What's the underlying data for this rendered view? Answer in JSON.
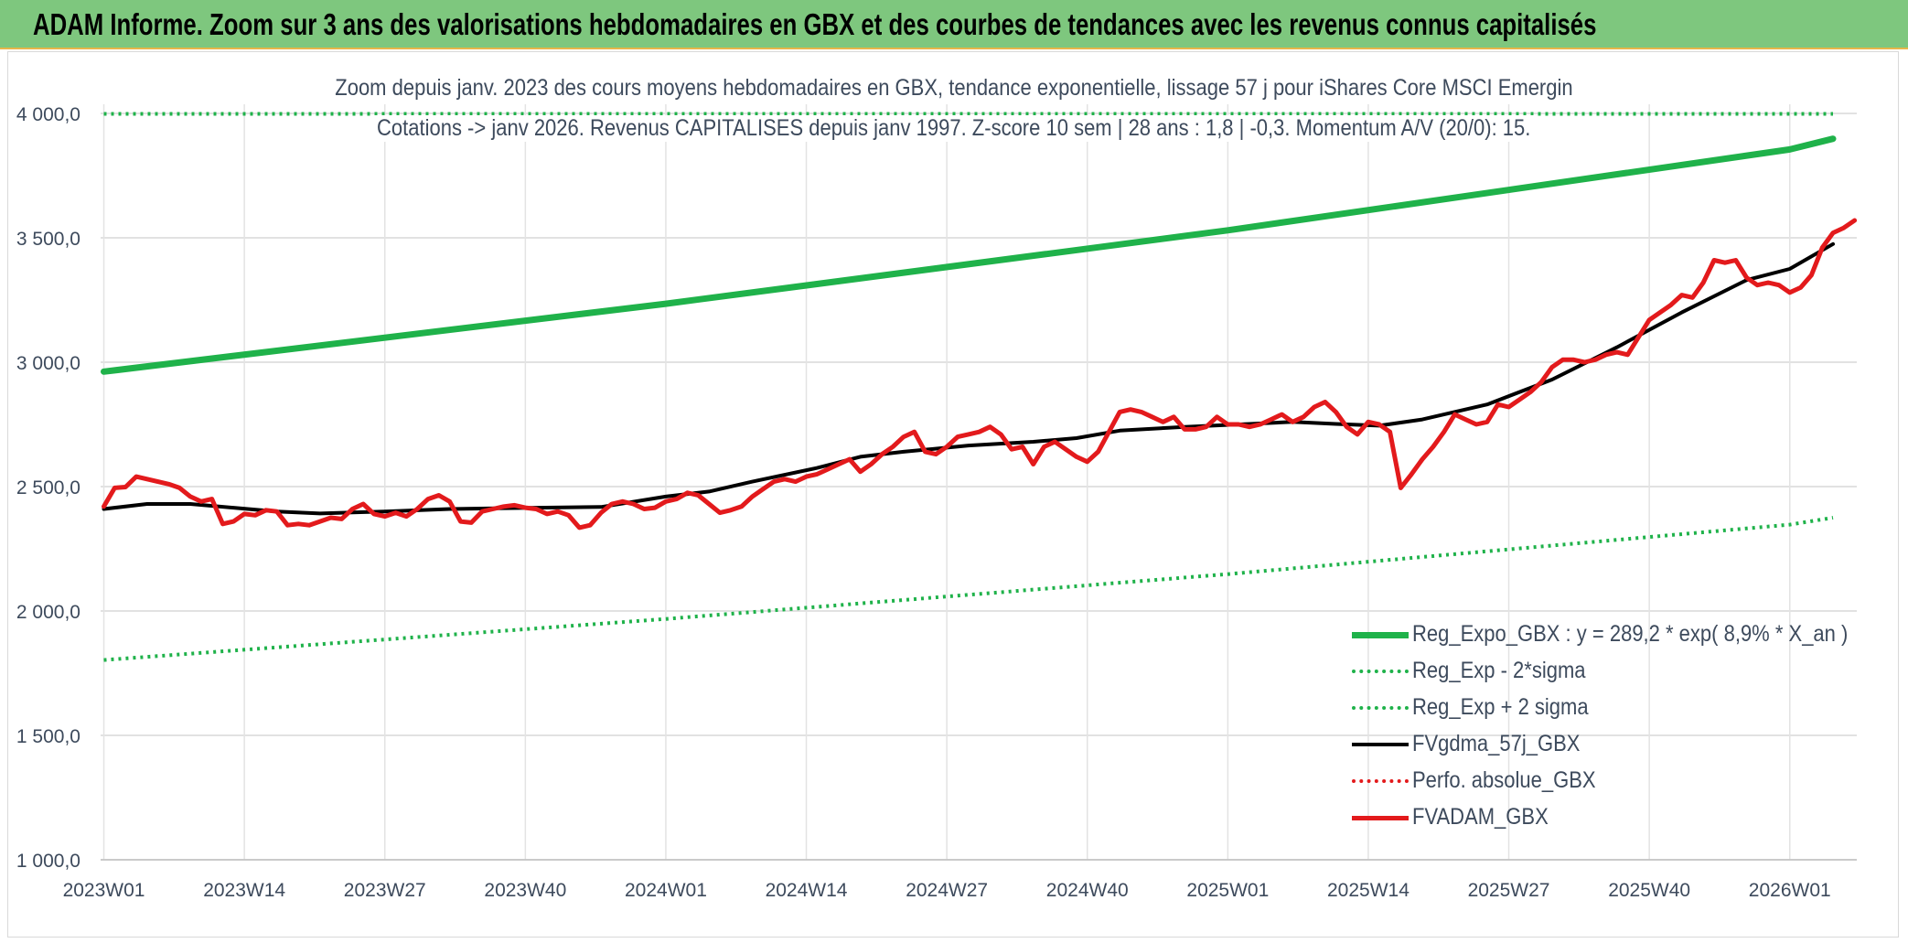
{
  "banner": {
    "title": "ADAM Informe. Zoom sur 3 ans des valorisations hebdomadaires en GBX et des courbes de tendances avec les revenus connus capitalisés"
  },
  "chart_data": {
    "type": "line",
    "title_line1": "Zoom depuis janv. 2023 des cours moyens hebdomadaires en GBX, tendance exponentielle, lissage 57 j pour iShares Core MSCI Emergin",
    "title_line2": "Cotations -> janv 2026. Revenus CAPITALISES depuis janv 1997. Z-score 10 sem | 28 ans : 1,8 | -0,3. Momentum A/V (20/0): 15.",
    "ylim": [
      1000,
      4000
    ],
    "yticks": [
      "1 000,0",
      "1 500,0",
      "2 000,0",
      "2 500,0",
      "3 000,0",
      "3 500,0",
      "4 000,0"
    ],
    "ytick_values": [
      1000,
      1500,
      2000,
      2500,
      3000,
      3500,
      4000
    ],
    "xticks": [
      "2023W01",
      "2023W14",
      "2023W27",
      "2023W40",
      "2024W01",
      "2024W14",
      "2024W27",
      "2024W40",
      "2025W01",
      "2025W14",
      "2025W27",
      "2025W40",
      "2026W01"
    ],
    "xtick_weeks": [
      0,
      13,
      26,
      39,
      52,
      65,
      78,
      91,
      104,
      117,
      130,
      143,
      156
    ],
    "x_range_weeks": [
      0,
      160
    ],
    "grid": true,
    "legend_position": "bottom-right",
    "series": [
      {
        "name": "Reg_Expo_GBX : y = 289,2 * exp( 8,9% *  X_an )",
        "color": "#1fb24a",
        "style": "solid",
        "width": 7,
        "anchors": [
          [
            0,
            2962
          ],
          [
            52,
            3235
          ],
          [
            104,
            3530
          ],
          [
            156,
            3855
          ],
          [
            160,
            3898
          ]
        ]
      },
      {
        "name": "Reg_Exp - 2*sigma",
        "color": "#1fb24a",
        "style": "dotted",
        "width": 4,
        "anchors": [
          [
            0,
            1803
          ],
          [
            52,
            1968
          ],
          [
            104,
            2148
          ],
          [
            156,
            2347
          ],
          [
            160,
            2375
          ]
        ]
      },
      {
        "name": "Reg_Exp + 2 sigma",
        "color": "#1fb24a",
        "style": "dotted",
        "width": 4,
        "anchors": [
          [
            0,
            3998
          ],
          [
            160,
            3998
          ]
        ]
      },
      {
        "name": "FVgdma_57j_GBX",
        "color": "#000000",
        "style": "solid",
        "width": 4,
        "anchors": [
          [
            0,
            2410
          ],
          [
            4,
            2430
          ],
          [
            8,
            2430
          ],
          [
            12,
            2415
          ],
          [
            16,
            2400
          ],
          [
            20,
            2392
          ],
          [
            26,
            2400
          ],
          [
            32,
            2410
          ],
          [
            40,
            2415
          ],
          [
            46,
            2418
          ],
          [
            52,
            2460
          ],
          [
            56,
            2480
          ],
          [
            60,
            2520
          ],
          [
            66,
            2575
          ],
          [
            70,
            2620
          ],
          [
            74,
            2640
          ],
          [
            80,
            2665
          ],
          [
            86,
            2680
          ],
          [
            90,
            2695
          ],
          [
            94,
            2725
          ],
          [
            100,
            2740
          ],
          [
            106,
            2752
          ],
          [
            110,
            2760
          ],
          [
            114,
            2752
          ],
          [
            118,
            2745
          ],
          [
            122,
            2770
          ],
          [
            128,
            2830
          ],
          [
            134,
            2930
          ],
          [
            140,
            3060
          ],
          [
            146,
            3200
          ],
          [
            152,
            3330
          ],
          [
            156,
            3375
          ],
          [
            160,
            3475
          ]
        ]
      },
      {
        "name": "Perfo. absolue_GBX",
        "color": "#e31a1c",
        "style": "dotted",
        "width": 3,
        "anchors": []
      },
      {
        "name": "FVADAM_GBX",
        "color": "#e31a1c",
        "style": "solid",
        "width": 5,
        "anchors": [
          [
            0,
            2420
          ],
          [
            1,
            2495
          ],
          [
            2,
            2498
          ],
          [
            3,
            2540
          ],
          [
            4,
            2530
          ],
          [
            5,
            2520
          ],
          [
            6,
            2510
          ],
          [
            7,
            2495
          ],
          [
            8,
            2460
          ],
          [
            9,
            2440
          ],
          [
            10,
            2450
          ],
          [
            11,
            2350
          ],
          [
            12,
            2360
          ],
          [
            13,
            2390
          ],
          [
            14,
            2385
          ],
          [
            15,
            2405
          ],
          [
            16,
            2400
          ],
          [
            17,
            2345
          ],
          [
            18,
            2350
          ],
          [
            19,
            2345
          ],
          [
            20,
            2360
          ],
          [
            21,
            2375
          ],
          [
            22,
            2370
          ],
          [
            23,
            2410
          ],
          [
            24,
            2430
          ],
          [
            25,
            2390
          ],
          [
            26,
            2380
          ],
          [
            27,
            2395
          ],
          [
            28,
            2380
          ],
          [
            29,
            2410
          ],
          [
            30,
            2450
          ],
          [
            31,
            2465
          ],
          [
            32,
            2440
          ],
          [
            33,
            2360
          ],
          [
            34,
            2355
          ],
          [
            35,
            2400
          ],
          [
            36,
            2410
          ],
          [
            37,
            2420
          ],
          [
            38,
            2425
          ],
          [
            39,
            2415
          ],
          [
            40,
            2410
          ],
          [
            41,
            2390
          ],
          [
            42,
            2400
          ],
          [
            43,
            2385
          ],
          [
            44,
            2335
          ],
          [
            45,
            2345
          ],
          [
            46,
            2395
          ],
          [
            47,
            2430
          ],
          [
            48,
            2440
          ],
          [
            49,
            2430
          ],
          [
            50,
            2410
          ],
          [
            51,
            2415
          ],
          [
            52,
            2440
          ],
          [
            53,
            2450
          ],
          [
            54,
            2475
          ],
          [
            55,
            2465
          ],
          [
            56,
            2430
          ],
          [
            57,
            2395
          ],
          [
            58,
            2405
          ],
          [
            59,
            2420
          ],
          [
            60,
            2460
          ],
          [
            61,
            2490
          ],
          [
            62,
            2520
          ],
          [
            63,
            2530
          ],
          [
            64,
            2520
          ],
          [
            65,
            2540
          ],
          [
            66,
            2550
          ],
          [
            67,
            2570
          ],
          [
            68,
            2590
          ],
          [
            69,
            2610
          ],
          [
            70,
            2560
          ],
          [
            71,
            2590
          ],
          [
            72,
            2630
          ],
          [
            73,
            2660
          ],
          [
            74,
            2700
          ],
          [
            75,
            2720
          ],
          [
            76,
            2640
          ],
          [
            77,
            2630
          ],
          [
            78,
            2660
          ],
          [
            79,
            2700
          ],
          [
            80,
            2710
          ],
          [
            81,
            2720
          ],
          [
            82,
            2740
          ],
          [
            83,
            2710
          ],
          [
            84,
            2650
          ],
          [
            85,
            2660
          ],
          [
            86,
            2590
          ],
          [
            87,
            2660
          ],
          [
            88,
            2680
          ],
          [
            89,
            2650
          ],
          [
            90,
            2620
          ],
          [
            91,
            2600
          ],
          [
            92,
            2640
          ],
          [
            93,
            2720
          ],
          [
            94,
            2800
          ],
          [
            95,
            2810
          ],
          [
            96,
            2800
          ],
          [
            97,
            2780
          ],
          [
            98,
            2760
          ],
          [
            99,
            2780
          ],
          [
            100,
            2730
          ],
          [
            101,
            2730
          ],
          [
            102,
            2740
          ],
          [
            103,
            2780
          ],
          [
            104,
            2750
          ],
          [
            105,
            2750
          ],
          [
            106,
            2740
          ],
          [
            107,
            2750
          ],
          [
            108,
            2770
          ],
          [
            109,
            2790
          ],
          [
            110,
            2760
          ],
          [
            111,
            2780
          ],
          [
            112,
            2820
          ],
          [
            113,
            2840
          ],
          [
            114,
            2800
          ],
          [
            115,
            2740
          ],
          [
            116,
            2710
          ],
          [
            117,
            2760
          ],
          [
            118,
            2750
          ],
          [
            119,
            2720
          ],
          [
            120,
            2495
          ],
          [
            121,
            2550
          ],
          [
            122,
            2610
          ],
          [
            123,
            2660
          ],
          [
            124,
            2720
          ],
          [
            125,
            2790
          ],
          [
            126,
            2770
          ],
          [
            127,
            2750
          ],
          [
            128,
            2760
          ],
          [
            129,
            2830
          ],
          [
            130,
            2820
          ],
          [
            131,
            2850
          ],
          [
            132,
            2880
          ],
          [
            133,
            2920
          ],
          [
            134,
            2980
          ],
          [
            135,
            3010
          ],
          [
            136,
            3010
          ],
          [
            137,
            3000
          ],
          [
            138,
            3010
          ],
          [
            139,
            3030
          ],
          [
            140,
            3040
          ],
          [
            141,
            3030
          ],
          [
            142,
            3100
          ],
          [
            143,
            3170
          ],
          [
            144,
            3200
          ],
          [
            145,
            3230
          ],
          [
            146,
            3270
          ],
          [
            147,
            3260
          ],
          [
            148,
            3320
          ],
          [
            149,
            3410
          ],
          [
            150,
            3400
          ],
          [
            151,
            3410
          ],
          [
            152,
            3340
          ],
          [
            153,
            3310
          ],
          [
            154,
            3320
          ],
          [
            155,
            3310
          ],
          [
            156,
            3280
          ],
          [
            157,
            3300
          ],
          [
            158,
            3350
          ],
          [
            159,
            3460
          ],
          [
            160,
            3520
          ],
          [
            161,
            3540
          ],
          [
            162,
            3570
          ]
        ]
      }
    ]
  }
}
